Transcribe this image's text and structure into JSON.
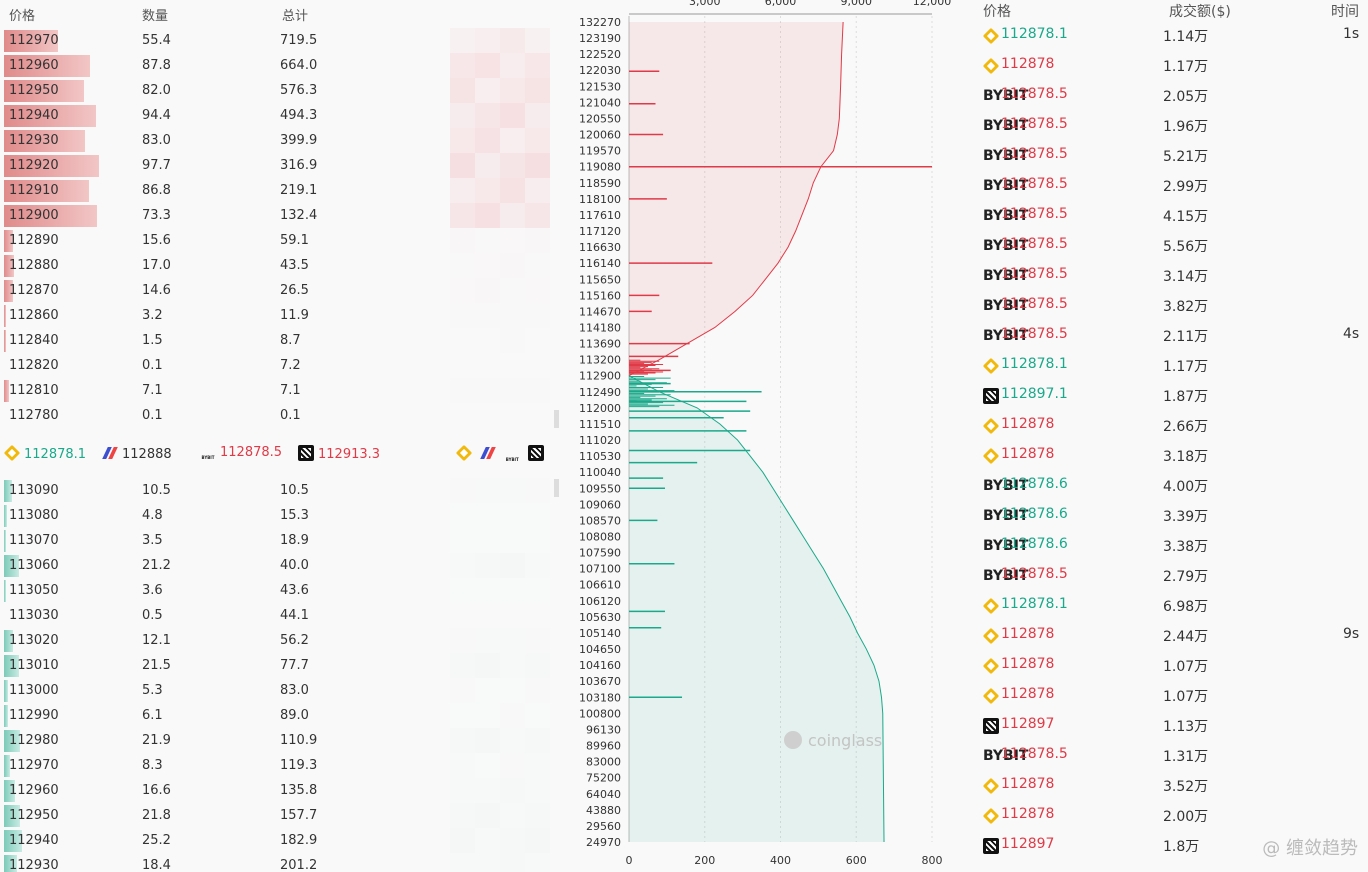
{
  "orderbook": {
    "headers": {
      "price": "价格",
      "qty": "数量",
      "total": "总计"
    },
    "asks": [
      {
        "price": "112970",
        "qty": "55.4",
        "total": "719.5",
        "level": 0.57
      },
      {
        "price": "112960",
        "qty": "87.8",
        "total": "664.0",
        "level": 0.9
      },
      {
        "price": "112950",
        "qty": "82.0",
        "total": "576.3",
        "level": 0.84
      },
      {
        "price": "112940",
        "qty": "94.4",
        "total": "494.3",
        "level": 0.97
      },
      {
        "price": "112930",
        "qty": "83.0",
        "total": "399.9",
        "level": 0.85
      },
      {
        "price": "112920",
        "qty": "97.7",
        "total": "316.9",
        "level": 1.0
      },
      {
        "price": "112910",
        "qty": "86.8",
        "total": "219.1",
        "level": 0.89
      },
      {
        "price": "112900",
        "qty": "73.3",
        "total": "132.4",
        "level": 0.98
      },
      {
        "price": "112890",
        "qty": "15.6",
        "total": "59.1",
        "level": 0.09
      },
      {
        "price": "112880",
        "qty": "17.0",
        "total": "43.5",
        "level": 0.1
      },
      {
        "price": "112870",
        "qty": "14.6",
        "total": "26.5",
        "level": 0.09
      },
      {
        "price": "112860",
        "qty": "3.2",
        "total": "11.9",
        "level": 0.02
      },
      {
        "price": "112840",
        "qty": "1.5",
        "total": "8.7",
        "level": 0.01
      },
      {
        "price": "112820",
        "qty": "0.1",
        "total": "7.2",
        "level": 0.0
      },
      {
        "price": "112810",
        "qty": "7.1",
        "total": "7.1",
        "level": 0.05
      },
      {
        "price": "112780",
        "qty": "0.1",
        "total": "0.1",
        "level": 0.0
      }
    ],
    "bids": [
      {
        "price": "113090",
        "qty": "10.5",
        "total": "10.5",
        "level": 0.08
      },
      {
        "price": "113080",
        "qty": "4.8",
        "total": "15.3",
        "level": 0.03
      },
      {
        "price": "113070",
        "qty": "3.5",
        "total": "18.9",
        "level": 0.02
      },
      {
        "price": "113060",
        "qty": "21.2",
        "total": "40.0",
        "level": 0.16
      },
      {
        "price": "113050",
        "qty": "3.6",
        "total": "43.6",
        "level": 0.02
      },
      {
        "price": "113030",
        "qty": "0.5",
        "total": "44.1",
        "level": 0.0
      },
      {
        "price": "113020",
        "qty": "12.1",
        "total": "56.2",
        "level": 0.09
      },
      {
        "price": "113010",
        "qty": "21.5",
        "total": "77.7",
        "level": 0.16
      },
      {
        "price": "113000",
        "qty": "5.3",
        "total": "83.0",
        "level": 0.04
      },
      {
        "price": "112990",
        "qty": "6.1",
        "total": "89.0",
        "level": 0.04
      },
      {
        "price": "112980",
        "qty": "21.9",
        "total": "110.9",
        "level": 0.17
      },
      {
        "price": "112970",
        "qty": "8.3",
        "total": "119.3",
        "level": 0.06
      },
      {
        "price": "112960",
        "qty": "16.6",
        "total": "135.8",
        "level": 0.12
      },
      {
        "price": "112950",
        "qty": "21.8",
        "total": "157.7",
        "level": 0.17
      },
      {
        "price": "112940",
        "qty": "25.2",
        "total": "182.9",
        "level": 0.19
      },
      {
        "price": "112930",
        "qty": "18.4",
        "total": "201.2",
        "level": 0.14
      }
    ],
    "exchange_prices": [
      {
        "exchange": "binance",
        "price": "112878.1",
        "color": "green"
      },
      {
        "exchange": "bitmex",
        "price": "112888",
        "color": "dark"
      },
      {
        "exchange": "bybit",
        "price": "112878.5",
        "color": "red"
      },
      {
        "exchange": "okx",
        "price": "112913.3",
        "color": "red"
      }
    ],
    "bybit_badge": "BYBIT"
  },
  "chart_data": {
    "type": "bar",
    "watermark": "coinglass",
    "x_top_ticks": [
      "3,000",
      "6,000",
      "9,000",
      "12,000"
    ],
    "x_bottom_ticks": [
      "0",
      "200",
      "400",
      "600",
      "800"
    ],
    "y_ticks": [
      "132270",
      "123190",
      "122520",
      "122030",
      "121530",
      "121040",
      "120550",
      "120060",
      "119570",
      "119080",
      "118590",
      "118100",
      "117610",
      "117120",
      "116630",
      "116140",
      "115650",
      "115160",
      "114670",
      "114180",
      "113690",
      "113200",
      "112900",
      "112490",
      "112000",
      "111510",
      "111020",
      "110530",
      "110040",
      "109550",
      "109060",
      "108570",
      "108080",
      "107590",
      "107100",
      "106610",
      "106120",
      "105630",
      "105140",
      "104650",
      "104160",
      "103670",
      "103180",
      "100800",
      "96130",
      "89960",
      "83000",
      "75200",
      "64040",
      "43880",
      "29560",
      "24970"
    ],
    "ask_bars": [
      {
        "price": 122000,
        "value": 80
      },
      {
        "price": 121000,
        "value": 70
      },
      {
        "price": 120060,
        "value": 90
      },
      {
        "price": 119080,
        "value": 800
      },
      {
        "price": 118100,
        "value": 100
      },
      {
        "price": 116140,
        "value": 220
      },
      {
        "price": 115160,
        "value": 80
      },
      {
        "price": 114670,
        "value": 60
      },
      {
        "price": 113690,
        "value": 160
      },
      {
        "price": 113300,
        "value": 130
      },
      {
        "price": 113000,
        "value": 110
      }
    ],
    "bid_bars": [
      {
        "price": 112700,
        "value": 110
      },
      {
        "price": 112490,
        "value": 350
      },
      {
        "price": 112200,
        "value": 310
      },
      {
        "price": 111900,
        "value": 320
      },
      {
        "price": 111700,
        "value": 250
      },
      {
        "price": 111300,
        "value": 310
      },
      {
        "price": 110700,
        "value": 320
      },
      {
        "price": 110330,
        "value": 180
      },
      {
        "price": 109860,
        "value": 90
      },
      {
        "price": 109550,
        "value": 95
      },
      {
        "price": 108570,
        "value": 75
      },
      {
        "price": 107250,
        "value": 120
      },
      {
        "price": 105800,
        "value": 95
      },
      {
        "price": 105300,
        "value": 85
      },
      {
        "price": 103180,
        "value": 140
      }
    ],
    "ask_cum_series": [
      {
        "price": 112900,
        "cum": 0
      },
      {
        "price": 113200,
        "cum": 1200
      },
      {
        "price": 113690,
        "cum": 2300
      },
      {
        "price": 114180,
        "cum": 3400
      },
      {
        "price": 114670,
        "cum": 4200
      },
      {
        "price": 115160,
        "cum": 4900
      },
      {
        "price": 115650,
        "cum": 5400
      },
      {
        "price": 116140,
        "cum": 5900
      },
      {
        "price": 116630,
        "cum": 6300
      },
      {
        "price": 117120,
        "cum": 6600
      },
      {
        "price": 117610,
        "cum": 6850
      },
      {
        "price": 118100,
        "cum": 7100
      },
      {
        "price": 118590,
        "cum": 7300
      },
      {
        "price": 119080,
        "cum": 7600
      },
      {
        "price": 119570,
        "cum": 8100
      },
      {
        "price": 120060,
        "cum": 8250
      },
      {
        "price": 120550,
        "cum": 8330
      },
      {
        "price": 121530,
        "cum": 8380
      },
      {
        "price": 122520,
        "cum": 8420
      },
      {
        "price": 132270,
        "cum": 8480
      }
    ],
    "bid_cum_series": [
      {
        "price": 112900,
        "cum": 0
      },
      {
        "price": 112490,
        "cum": 1200
      },
      {
        "price": 112000,
        "cum": 2700
      },
      {
        "price": 111510,
        "cum": 3600
      },
      {
        "price": 111020,
        "cum": 4300
      },
      {
        "price": 110530,
        "cum": 4800
      },
      {
        "price": 110040,
        "cum": 5300
      },
      {
        "price": 109550,
        "cum": 5700
      },
      {
        "price": 109060,
        "cum": 6100
      },
      {
        "price": 108570,
        "cum": 6500
      },
      {
        "price": 108080,
        "cum": 6900
      },
      {
        "price": 107590,
        "cum": 7300
      },
      {
        "price": 107100,
        "cum": 7700
      },
      {
        "price": 106610,
        "cum": 8050
      },
      {
        "price": 106120,
        "cum": 8400
      },
      {
        "price": 105630,
        "cum": 8750
      },
      {
        "price": 105140,
        "cum": 9050
      },
      {
        "price": 104650,
        "cum": 9400
      },
      {
        "price": 104160,
        "cum": 9700
      },
      {
        "price": 103670,
        "cum": 9900
      },
      {
        "price": 103180,
        "cum": 10000
      },
      {
        "price": 100800,
        "cum": 10050
      },
      {
        "price": 24970,
        "cum": 10100
      }
    ],
    "colors": {
      "ask": "#e03a47",
      "bid": "#1aa98a"
    }
  },
  "trades": {
    "headers": {
      "price": "价格",
      "amount": "成交额($)",
      "time": "时间"
    },
    "rows": [
      {
        "ex": "binance",
        "price": "112878.1",
        "color": "green",
        "amount": "1.14万",
        "time": "1s"
      },
      {
        "ex": "binance",
        "price": "112878",
        "color": "red",
        "amount": "1.17万",
        "time": ""
      },
      {
        "ex": "bybit",
        "price": "112878.5",
        "color": "red",
        "amount": "2.05万",
        "time": ""
      },
      {
        "ex": "bybit",
        "price": "112878.5",
        "color": "red",
        "amount": "1.96万",
        "time": ""
      },
      {
        "ex": "bybit",
        "price": "112878.5",
        "color": "red",
        "amount": "5.21万",
        "time": ""
      },
      {
        "ex": "bybit",
        "price": "112878.5",
        "color": "red",
        "amount": "2.99万",
        "time": ""
      },
      {
        "ex": "bybit",
        "price": "112878.5",
        "color": "red",
        "amount": "4.15万",
        "time": ""
      },
      {
        "ex": "bybit",
        "price": "112878.5",
        "color": "red",
        "amount": "5.56万",
        "time": ""
      },
      {
        "ex": "bybit",
        "price": "112878.5",
        "color": "red",
        "amount": "3.14万",
        "time": ""
      },
      {
        "ex": "bybit",
        "price": "112878.5",
        "color": "red",
        "amount": "3.82万",
        "time": ""
      },
      {
        "ex": "bybit",
        "price": "112878.5",
        "color": "red",
        "amount": "2.11万",
        "time": "4s"
      },
      {
        "ex": "binance",
        "price": "112878.1",
        "color": "green",
        "amount": "1.17万",
        "time": ""
      },
      {
        "ex": "okx",
        "price": "112897.1",
        "color": "green",
        "amount": "1.87万",
        "time": ""
      },
      {
        "ex": "binance",
        "price": "112878",
        "color": "red",
        "amount": "2.66万",
        "time": ""
      },
      {
        "ex": "binance",
        "price": "112878",
        "color": "red",
        "amount": "3.18万",
        "time": ""
      },
      {
        "ex": "bybit",
        "price": "112878.6",
        "color": "green",
        "amount": "4.00万",
        "time": ""
      },
      {
        "ex": "bybit",
        "price": "112878.6",
        "color": "green",
        "amount": "3.39万",
        "time": ""
      },
      {
        "ex": "bybit",
        "price": "112878.6",
        "color": "green",
        "amount": "3.38万",
        "time": ""
      },
      {
        "ex": "bybit",
        "price": "112878.5",
        "color": "red",
        "amount": "2.79万",
        "time": ""
      },
      {
        "ex": "binance",
        "price": "112878.1",
        "color": "green",
        "amount": "6.98万",
        "time": ""
      },
      {
        "ex": "binance",
        "price": "112878",
        "color": "red",
        "amount": "2.44万",
        "time": "9s"
      },
      {
        "ex": "binance",
        "price": "112878",
        "color": "red",
        "amount": "1.07万",
        "time": ""
      },
      {
        "ex": "binance",
        "price": "112878",
        "color": "red",
        "amount": "1.07万",
        "time": ""
      },
      {
        "ex": "okx",
        "price": "112897",
        "color": "red",
        "amount": "1.13万",
        "time": ""
      },
      {
        "ex": "bybit",
        "price": "112878.5",
        "color": "red",
        "amount": "1.31万",
        "time": ""
      },
      {
        "ex": "binance",
        "price": "112878",
        "color": "red",
        "amount": "3.52万",
        "time": ""
      },
      {
        "ex": "binance",
        "price": "112878",
        "color": "red",
        "amount": "2.00万",
        "time": ""
      },
      {
        "ex": "okx",
        "price": "112897",
        "color": "red",
        "amount": "1.8万",
        "time": ""
      }
    ]
  },
  "watermark_text": "@ 缠敛趋势"
}
